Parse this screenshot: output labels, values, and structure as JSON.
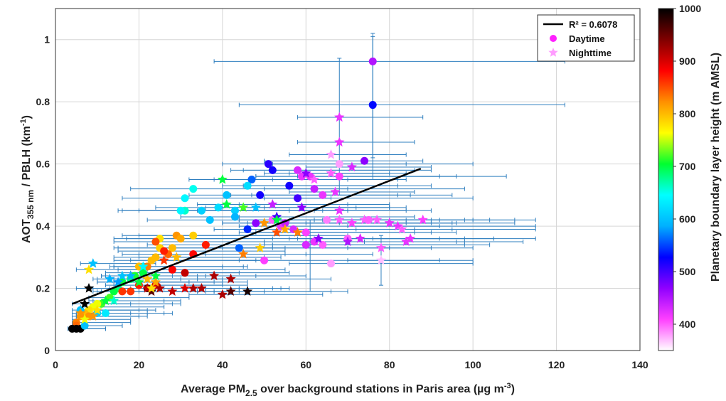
{
  "chart_data": {
    "type": "scatter",
    "xlabel": {
      "prefix": "Average PM",
      "sub": "2.5",
      "suffix": " over background stations in Paris area (µg m",
      "sup": "-3",
      "end": ")"
    },
    "ylabel": {
      "prefix": "AOT",
      "sub": "355 nm",
      "suffix": " / PBLH (km",
      "sup": "-1",
      "end": ")"
    },
    "xlim": [
      0,
      140
    ],
    "ylim": [
      0,
      1.1
    ],
    "xticks": [
      "0",
      "20",
      "40",
      "60",
      "80",
      "100",
      "120",
      "140"
    ],
    "yticks": [
      "0",
      "0.2",
      "0.4",
      "0.6",
      "0.8",
      "1"
    ],
    "legend": {
      "position": "top-right",
      "entries": [
        "R² = 0.6078",
        "Daytime",
        "Nighttime"
      ]
    },
    "fit_line": {
      "x": [
        4,
        87.5
      ],
      "y": [
        0.15,
        0.585
      ]
    },
    "colorbar": {
      "label": "Planetary boundary layer height (m AMSL)",
      "range": [
        350,
        1000
      ],
      "ticks": [
        "400",
        "500",
        "600",
        "700",
        "800",
        "900",
        "1000"
      ],
      "colors": [
        "#ffffff",
        "#ff40ff",
        "#9000ff",
        "#0000ff",
        "#00b0ff",
        "#00ffff",
        "#00ff30",
        "#ffff00",
        "#ff9000",
        "#ff0000",
        "#800000",
        "#000000"
      ]
    },
    "series": [
      {
        "name": "Daytime",
        "marker": "circle",
        "points": [
          [
            76,
            0.93,
            450,
            38,
            122
          ],
          [
            76,
            0.79,
            530,
            44,
            122
          ],
          [
            74,
            0.61,
            470,
            50,
            88
          ],
          [
            68,
            0.6,
            380,
            52,
            100
          ],
          [
            61,
            0.56,
            420,
            48,
            96
          ],
          [
            62,
            0.52,
            440,
            50,
            98
          ],
          [
            64,
            0.5,
            420,
            47,
            95
          ],
          [
            58,
            0.49,
            500,
            50,
            100
          ],
          [
            51,
            0.6,
            510,
            40,
            84
          ],
          [
            52,
            0.58,
            520,
            42,
            86
          ],
          [
            47,
            0.55,
            560,
            38,
            84
          ],
          [
            46,
            0.53,
            620,
            40,
            82
          ],
          [
            49,
            0.5,
            520,
            42,
            85
          ],
          [
            56,
            0.53,
            520,
            45,
            90
          ],
          [
            58,
            0.58,
            430,
            45,
            90
          ],
          [
            59,
            0.56,
            420,
            48,
            92
          ],
          [
            41,
            0.5,
            600,
            32,
            82
          ],
          [
            43,
            0.45,
            610,
            34,
            84
          ],
          [
            46,
            0.39,
            540,
            38,
            86
          ],
          [
            48,
            0.41,
            470,
            40,
            90
          ],
          [
            52,
            0.42,
            400,
            44,
            90
          ],
          [
            54,
            0.4,
            420,
            44,
            92
          ],
          [
            57,
            0.39,
            430,
            46,
            95
          ],
          [
            60,
            0.38,
            410,
            48,
            96
          ],
          [
            62,
            0.35,
            420,
            50,
            98
          ],
          [
            64,
            0.34,
            400,
            52,
            98
          ],
          [
            66,
            0.28,
            380,
            56,
            100
          ],
          [
            50,
            0.29,
            410,
            44,
            92
          ],
          [
            44,
            0.33,
            560,
            36,
            90
          ],
          [
            65,
            0.42,
            390,
            54,
            100
          ],
          [
            70,
            0.36,
            400,
            58,
            105
          ],
          [
            75,
            0.42,
            400,
            62,
            110
          ],
          [
            33,
            0.52,
            650,
            18,
            70
          ],
          [
            31,
            0.49,
            640,
            16,
            66
          ],
          [
            31,
            0.45,
            660,
            16,
            64
          ],
          [
            30,
            0.45,
            640,
            15,
            62
          ],
          [
            35,
            0.45,
            610,
            20,
            70
          ],
          [
            33,
            0.37,
            790,
            20,
            70
          ],
          [
            29,
            0.37,
            820,
            16,
            60
          ],
          [
            30,
            0.36,
            810,
            17,
            62
          ],
          [
            28,
            0.33,
            800,
            15,
            55
          ],
          [
            27,
            0.31,
            840,
            16,
            55
          ],
          [
            25,
            0.36,
            780,
            14,
            52
          ],
          [
            25,
            0.33,
            790,
            14,
            52
          ],
          [
            24,
            0.3,
            800,
            14,
            50
          ],
          [
            23,
            0.29,
            800,
            14,
            48
          ],
          [
            22,
            0.27,
            830,
            14,
            46
          ],
          [
            20,
            0.27,
            800,
            13,
            45
          ],
          [
            28,
            0.26,
            880,
            15,
            55
          ],
          [
            31,
            0.25,
            910,
            18,
            56
          ],
          [
            33,
            0.31,
            880,
            20,
            60
          ],
          [
            36,
            0.34,
            870,
            22,
            64
          ],
          [
            21,
            0.25,
            700,
            12,
            44
          ],
          [
            19,
            0.24,
            710,
            11,
            42
          ],
          [
            18,
            0.23,
            680,
            10,
            40
          ],
          [
            16,
            0.22,
            700,
            10,
            38
          ],
          [
            15,
            0.2,
            680,
            9,
            36
          ],
          [
            14,
            0.19,
            700,
            9,
            34
          ],
          [
            13,
            0.17,
            720,
            8,
            32
          ],
          [
            11,
            0.15,
            720,
            7,
            30
          ],
          [
            10,
            0.15,
            760,
            7,
            28
          ],
          [
            9,
            0.14,
            760,
            6,
            26
          ],
          [
            8,
            0.13,
            780,
            6,
            24
          ],
          [
            7,
            0.12,
            800,
            5,
            22
          ],
          [
            6,
            0.11,
            820,
            4,
            20
          ],
          [
            5,
            0.09,
            830,
            4,
            18
          ],
          [
            5,
            0.08,
            840,
            4,
            16
          ],
          [
            4,
            0.07,
            1000,
            3,
            12
          ],
          [
            5,
            0.07,
            1000,
            3,
            12
          ],
          [
            6,
            0.07,
            1000,
            3,
            12
          ],
          [
            7,
            0.08,
            600,
            4,
            16
          ],
          [
            6,
            0.13,
            600,
            4,
            20
          ],
          [
            8,
            0.11,
            820,
            5,
            22
          ],
          [
            10,
            0.12,
            610,
            6,
            26
          ],
          [
            12,
            0.12,
            630,
            7,
            28
          ],
          [
            16,
            0.19,
            860,
            10,
            36
          ],
          [
            18,
            0.19,
            860,
            11,
            38
          ],
          [
            20,
            0.21,
            870,
            12,
            40
          ],
          [
            22,
            0.2,
            960,
            13,
            44
          ],
          [
            24,
            0.21,
            900,
            14,
            46
          ],
          [
            24,
            0.35,
            850,
            14,
            50
          ],
          [
            26,
            0.32,
            870,
            15,
            55
          ],
          [
            37,
            0.42,
            600,
            22,
            75
          ],
          [
            39,
            0.46,
            620,
            24,
            80
          ],
          [
            43,
            0.43,
            590,
            30,
            86
          ],
          [
            55,
            0.41,
            440,
            46,
            96
          ],
          [
            60,
            0.34,
            430,
            50,
            104
          ],
          [
            68,
            0.56,
            410,
            58,
            108
          ]
        ]
      },
      {
        "name": "Nighttime",
        "marker": "star",
        "points": [
          [
            68,
            0.75,
            420,
            58,
            88
          ],
          [
            68,
            0.67,
            420,
            58,
            86
          ],
          [
            66,
            0.63,
            380,
            56,
            84
          ],
          [
            66,
            0.57,
            400,
            56,
            84
          ],
          [
            71,
            0.59,
            430,
            60,
            90
          ],
          [
            60,
            0.57,
            470,
            50,
            80
          ],
          [
            62,
            0.55,
            400,
            52,
            82
          ],
          [
            67,
            0.51,
            420,
            56,
            86
          ],
          [
            68,
            0.45,
            420,
            56,
            90
          ],
          [
            68,
            0.42,
            400,
            56,
            92
          ],
          [
            71,
            0.41,
            410,
            60,
            95
          ],
          [
            74,
            0.42,
            400,
            62,
            98
          ],
          [
            77,
            0.42,
            400,
            64,
            104
          ],
          [
            80,
            0.41,
            420,
            68,
            110
          ],
          [
            82,
            0.4,
            420,
            70,
            115
          ],
          [
            83,
            0.39,
            400,
            72,
            115
          ],
          [
            85,
            0.36,
            420,
            76,
            115
          ],
          [
            84,
            0.35,
            420,
            74,
            112
          ],
          [
            78,
            0.33,
            400,
            70,
            100
          ],
          [
            78,
            0.29,
            370,
            70,
            100
          ],
          [
            88,
            0.42,
            410,
            80,
            115
          ],
          [
            73,
            0.36,
            430,
            62,
            98
          ],
          [
            70,
            0.35,
            450,
            60,
            96
          ],
          [
            63,
            0.36,
            470,
            56,
            92
          ],
          [
            53,
            0.43,
            500,
            44,
            86
          ],
          [
            53,
            0.42,
            700,
            44,
            84
          ],
          [
            55,
            0.39,
            810,
            46,
            86
          ],
          [
            53,
            0.38,
            850,
            44,
            86
          ],
          [
            58,
            0.38,
            830,
            48,
            90
          ],
          [
            50,
            0.41,
            820,
            40,
            84
          ],
          [
            49,
            0.33,
            790,
            40,
            80
          ],
          [
            45,
            0.31,
            830,
            36,
            76
          ],
          [
            45,
            0.46,
            720,
            36,
            72
          ],
          [
            41,
            0.47,
            700,
            34,
            70
          ],
          [
            40,
            0.55,
            700,
            32,
            70
          ],
          [
            48,
            0.46,
            600,
            40,
            80
          ],
          [
            52,
            0.47,
            440,
            44,
            80
          ],
          [
            59,
            0.46,
            470,
            50,
            84
          ],
          [
            46,
            0.19,
            990,
            38,
            70
          ],
          [
            42,
            0.19,
            960,
            34,
            66
          ],
          [
            42,
            0.23,
            920,
            34,
            66
          ],
          [
            40,
            0.18,
            920,
            32,
            64
          ],
          [
            38,
            0.24,
            920,
            28,
            60
          ],
          [
            35,
            0.2,
            920,
            26,
            56
          ],
          [
            33,
            0.2,
            920,
            24,
            54
          ],
          [
            31,
            0.2,
            900,
            22,
            52
          ],
          [
            28,
            0.19,
            910,
            20,
            50
          ],
          [
            25,
            0.2,
            920,
            18,
            46
          ],
          [
            23,
            0.19,
            960,
            16,
            44
          ],
          [
            22,
            0.2,
            910,
            15,
            42
          ],
          [
            20,
            0.22,
            700,
            14,
            40
          ],
          [
            21,
            0.27,
            640,
            14,
            40
          ],
          [
            18,
            0.24,
            590,
            12,
            36
          ],
          [
            16,
            0.24,
            600,
            11,
            34
          ],
          [
            15,
            0.22,
            580,
            10,
            32
          ],
          [
            13,
            0.23,
            590,
            9,
            30
          ],
          [
            9,
            0.28,
            600,
            6,
            24
          ],
          [
            8,
            0.26,
            780,
            5,
            22
          ],
          [
            8,
            0.2,
            1000,
            5,
            20
          ],
          [
            7,
            0.15,
            1000,
            4,
            18
          ],
          [
            6,
            0.12,
            820,
            4,
            18
          ],
          [
            7,
            0.1,
            760,
            4,
            18
          ],
          [
            9,
            0.11,
            820,
            5,
            20
          ],
          [
            10,
            0.13,
            780,
            6,
            22
          ],
          [
            12,
            0.16,
            700,
            8,
            26
          ],
          [
            14,
            0.16,
            660,
            9,
            30
          ],
          [
            22,
            0.23,
            800,
            14,
            42
          ],
          [
            23,
            0.2,
            780,
            15,
            44
          ],
          [
            24,
            0.22,
            810,
            16,
            46
          ],
          [
            24,
            0.24,
            700,
            16,
            48
          ],
          [
            26,
            0.29,
            860,
            18,
            50
          ],
          [
            29,
            0.3,
            800,
            20,
            54
          ]
        ]
      }
    ]
  }
}
